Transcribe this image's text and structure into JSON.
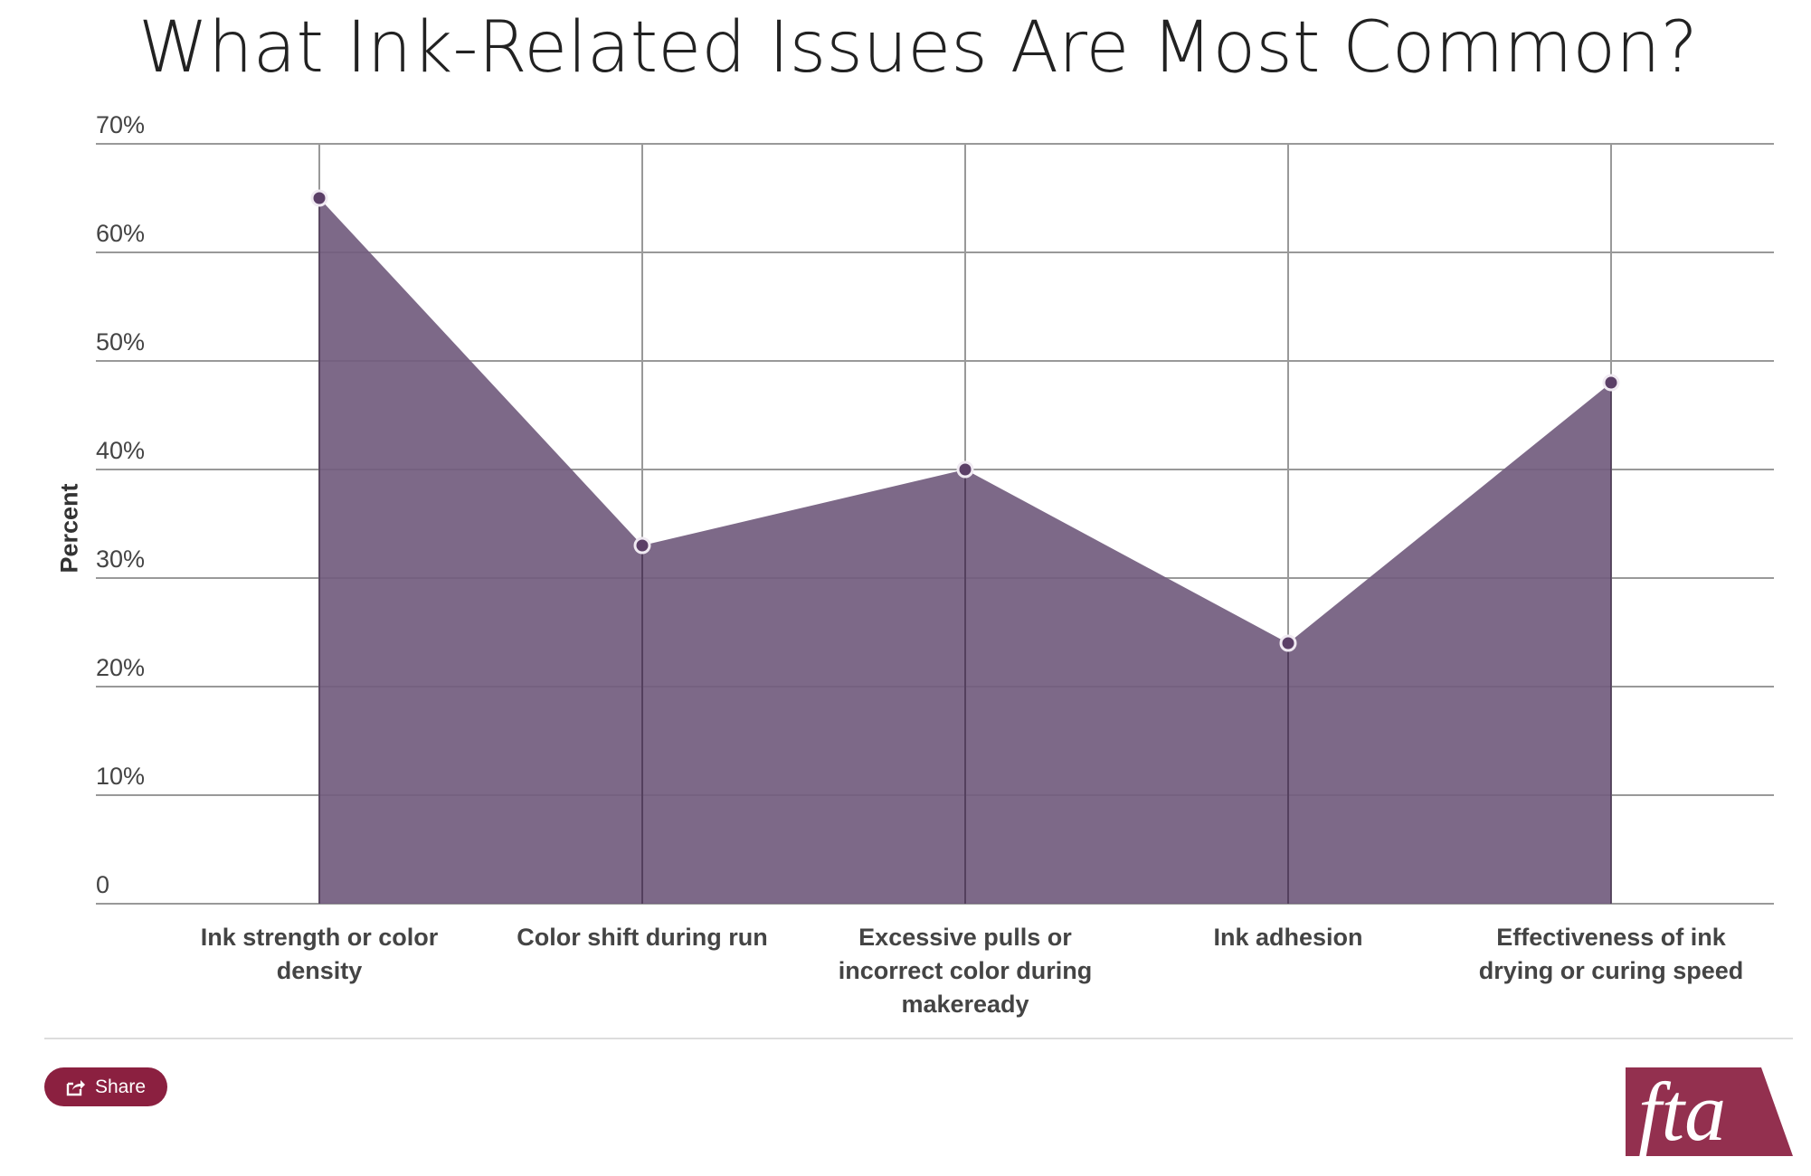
{
  "chart_data": {
    "type": "area",
    "title": "What Ink-Related Issues Are Most Common?",
    "ylabel": "Percent",
    "xlabel": "",
    "ylim": [
      0,
      70
    ],
    "yticks": [
      "0",
      "10%",
      "20%",
      "30%",
      "40%",
      "50%",
      "60%",
      "70%"
    ],
    "grid": true,
    "categories": [
      "Ink strength or color density",
      "Color shift during run",
      "Excessive pulls or incorrect color during makeready",
      "Ink adhesion",
      "Effectiveness of ink drying or curing speed"
    ],
    "values": [
      65,
      33,
      40,
      24,
      48
    ],
    "colors": {
      "fill": "#725c7e",
      "point": "#5b3f67",
      "grid": "#999999"
    }
  },
  "footer": {
    "share_label": "Share",
    "share_icon": "share-icon",
    "logo_text": "fta",
    "brand_color": "#8b2040"
  }
}
